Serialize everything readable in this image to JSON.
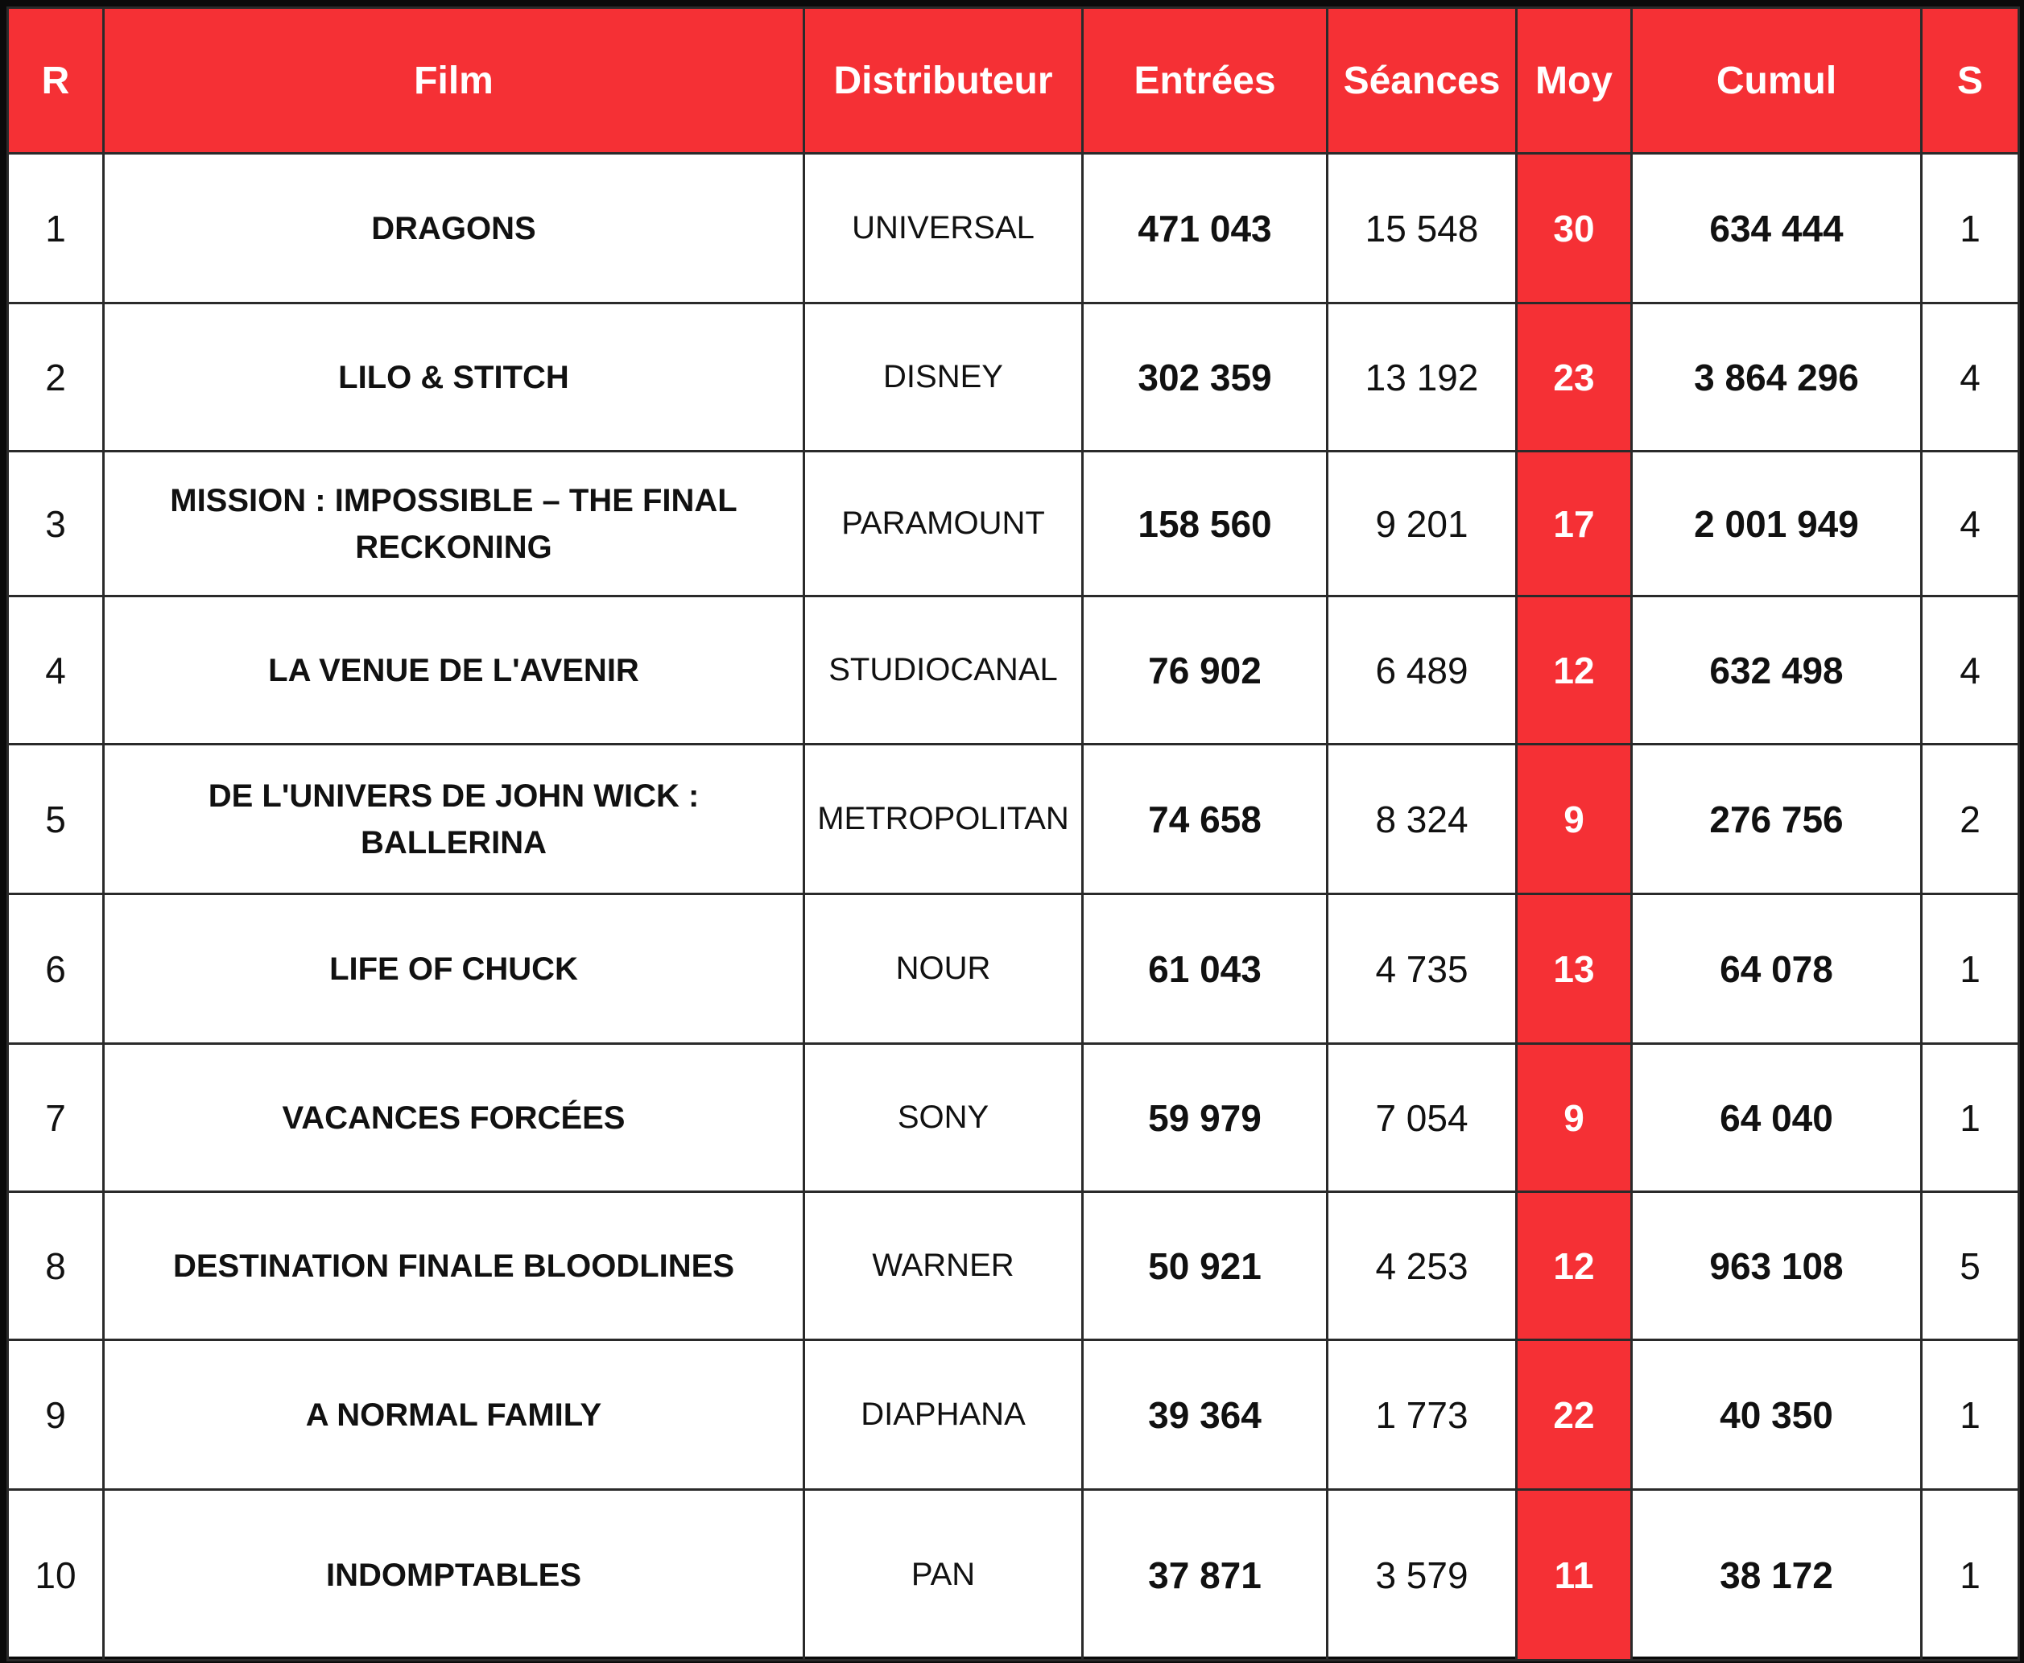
{
  "table": {
    "headers": [
      "R",
      "Film",
      "Distributeur",
      "Entrées",
      "Séances",
      "Moy",
      "Cumul",
      "S"
    ],
    "rows": [
      [
        "1",
        "DRAGONS",
        "UNIVERSAL",
        "471 043",
        "15 548",
        "30",
        "634 444",
        "1"
      ],
      [
        "2",
        "LILO & STITCH",
        "DISNEY",
        "302 359",
        "13 192",
        "23",
        "3 864 296",
        "4"
      ],
      [
        "3",
        "MISSION : IMPOSSIBLE – THE FINAL RECKONING",
        "PARAMOUNT",
        "158 560",
        "9 201",
        "17",
        "2 001 949",
        "4"
      ],
      [
        "4",
        "LA VENUE DE L'AVENIR",
        "STUDIOCANAL",
        "76 902",
        "6 489",
        "12",
        "632 498",
        "4"
      ],
      [
        "5",
        "DE L'UNIVERS DE JOHN WICK : BALLERINA",
        "METROPOLITAN",
        "74 658",
        "8 324",
        "9",
        "276 756",
        "2"
      ],
      [
        "6",
        "LIFE OF CHUCK",
        "NOUR",
        "61 043",
        "4 735",
        "13",
        "64 078",
        "1"
      ],
      [
        "7",
        "VACANCES FORCÉES",
        "SONY",
        "59 979",
        "7 054",
        "9",
        "64 040",
        "1"
      ],
      [
        "8",
        "DESTINATION FINALE BLOODLINES",
        "WARNER",
        "50 921",
        "4 253",
        "12",
        "963 108",
        "5"
      ],
      [
        "9",
        "A NORMAL FAMILY",
        "DIAPHANA",
        "39 364",
        "1 773",
        "22",
        "40 350",
        "1"
      ],
      [
        "10",
        "INDOMPTABLES",
        "PAN",
        "37 871",
        "3 579",
        "11",
        "38 172",
        "1"
      ]
    ]
  }
}
